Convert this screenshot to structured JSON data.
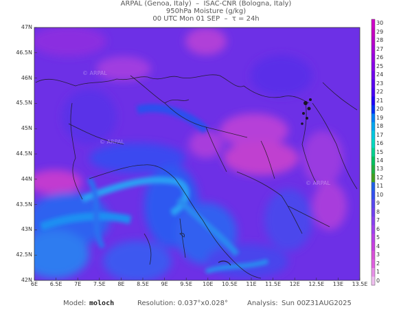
{
  "header": {
    "line1": "ARPAL (Genoa, Italy)  –  ISAC-CNR (Bologna, Italy)",
    "line2": "950hPa Moisture (g/kg)",
    "line3": "00 UTC Mon 01 SEP  –  τ = 24h"
  },
  "map": {
    "lat_ticks": [
      "47N",
      "46.5N",
      "46N",
      "45.5N",
      "45N",
      "44.5N",
      "44N",
      "43.5N",
      "43N",
      "42.5N",
      "42N"
    ],
    "lon_ticks": [
      "6E",
      "6.5E",
      "7E",
      "7.5E",
      "8E",
      "8.5E",
      "9E",
      "9.5E",
      "10E",
      "10.5E",
      "11E",
      "11.5E",
      "12E",
      "12.5E",
      "13E",
      "13.5E"
    ],
    "lat_range": [
      42,
      47
    ],
    "lon_range": [
      6,
      13.5
    ],
    "watermark": "© ARPAL",
    "colors": {
      "low_moisture": "#2b3fd6",
      "mid_moisture": "#7a2ee8",
      "high_moisture": "#c43cd0",
      "coast_low": "#1e8ef0",
      "border_lines": "#1a1a1a"
    }
  },
  "colorbar": {
    "labels": [
      "30",
      "29",
      "28",
      "27",
      "26",
      "25",
      "24",
      "23",
      "22",
      "21",
      "20",
      "19",
      "18",
      "17",
      "16",
      "15",
      "14",
      "13",
      "12",
      "11",
      "10",
      "9",
      "8",
      "7",
      "6",
      "5",
      "4",
      "3",
      "2",
      "1",
      "0"
    ],
    "colors": [
      "#d000c8",
      "#c600c0",
      "#b800c8",
      "#a800d8",
      "#9800e0",
      "#8800e8",
      "#7000ec",
      "#5a00f0",
      "#4800f4",
      "#2000f8",
      "#0030f8",
      "#0080f8",
      "#00a8f0",
      "#00c8e0",
      "#00d8c0",
      "#00d090",
      "#00c060",
      "#20b040",
      "#40a020",
      "#2060e8",
      "#3450f0",
      "#5848f0",
      "#7040f0",
      "#8840f0",
      "#a040f0",
      "#b840e8",
      "#c840e0",
      "#d850d8",
      "#e060e0",
      "#e890e8",
      "#f0c0f0"
    ]
  },
  "footer": {
    "model_label": "Model:",
    "model_value": "moloch",
    "resolution": "Resolution: 0.037°x0.028°",
    "analysis_label": "Analysis:",
    "analysis_value": "Sun 00Z31AUG2025"
  }
}
